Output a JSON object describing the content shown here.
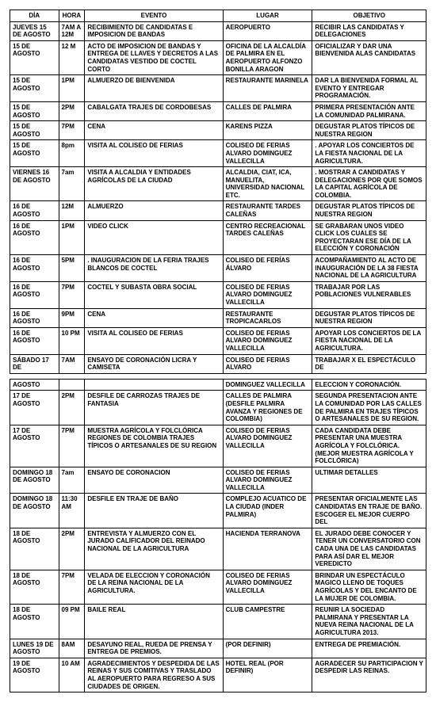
{
  "headers": {
    "dia": "DÍA",
    "hora": "HORA",
    "evento": "EVENTO",
    "lugar": "LUGAR",
    "objetivo": "OBJETIVO"
  },
  "rows1": [
    {
      "dia": "JUEVES 15 DE AGOSTO",
      "hora": "7AM A 12M",
      "evento": "RECIBIMIENTO DE CANDIDATAS E IMPOSICION DE BANDAS",
      "lugar": "AEROPUERTO",
      "objetivo": "RECIBIR LAS CANDIDATAS Y DELEGACIONES"
    },
    {
      "dia": "15 DE AGOSTO",
      "hora": "12 M",
      "evento": "ACTO DE IMPOSICION DE BANDAS Y ENTREGA DE LLAVES Y DECRETOS A LAS CANDIDATAS VESTIDO DE COCTEL CORTO",
      "lugar": "OFICINA DE LA ALCALDÍA DE PALMIRA EN EL AEROPUERTO ALFONZO BONILLA ARAGON",
      "objetivo": "OFICIALIZAR Y DAR UNA BIENVENIDA ALAS CANDIDATAS"
    },
    {
      "dia": "15 DE AGOSTO",
      "hora": "1PM",
      "evento": "ALMUERZO DE BIENVENIDA",
      "lugar": "RESTAURANTE MARINELA",
      "objetivo": "DAR LA BIENVENIDA FORMAL AL EVENTO Y ENTREGAR PROGRAMACIÓN."
    },
    {
      "dia": "15 DE AGOSTO",
      "hora": "2PM",
      "evento": "CABALGATA TRAJES DE CORDOBESAS",
      "lugar": "CALLES DE PALMIRA",
      "objetivo": "PRIMERA PRESENTACIÓN ANTE LA COMUNIDAD PALMIRANA."
    },
    {
      "dia": "15 DE AGOSTO",
      "hora": "7PM",
      "evento": "CENA",
      "lugar": "KARENS PIZZA",
      "objetivo": "DEGUSTAR PLATOS TÍPICOS DE NUESTRA REGION"
    },
    {
      "dia": "15 DE AGOSTO",
      "hora": "8pm",
      "evento": "VISITA AL COLISEO DE FERIAS",
      "lugar": "COLISEO DE FERIAS ALVARO DOMINGUEZ VALLECILLA",
      "objetivo": ". APOYAR LOS CONCIERTOS DE LA FIESTA NACIONAL DE LA AGRICULTURA."
    },
    {
      "dia": "VIERNES 16 DE AGOSTO",
      "hora": "7am",
      "evento": "VISITA A ALCALDIA Y ENTIDADES AGRÍCOLAS DE LA CIUDAD",
      "lugar": "ALCALDIA, CIAT, ICA, MANUELITA, UNIVERSIDAD NACIONAL ETC.",
      "objetivo": ". MOSTRAR A CANDIDATAS Y DELEGACIONES POR QUE SOMOS LA CAPITAL AGRÍCOLA DE COLOMBIA."
    },
    {
      "dia": "16 DE AGOSTO",
      "hora": "12M",
      "evento": "ALMUERZO",
      "lugar": "RESTAURANTE TARDES CALEÑAS",
      "objetivo": "DEGUSTAR PLATOS TÍPICOS DE NUESTRA REGION"
    },
    {
      "dia": "16 DE AGOSTO",
      "hora": "1PM",
      "evento": "VIDEO CLICK",
      "lugar": "CENTRO RECREACIONAL TARDES CALEÑAS",
      "objetivo": "SE GRABARAN UNOS VIDEO CLICK LOS CUALES SE PROYECTARAN ESE DÍA DE LA ELECCIÓN Y CORONACIÓN"
    },
    {
      "dia": "16 DE AGOSTO",
      "hora": "5PM",
      "evento": ". INAUGURACION DE LA FERIA TRAJES BLANCOS DE COCTEL",
      "lugar": "COLISEO DE FERÍAS ÁLVARO",
      "objetivo": "ACOMPAÑAMIENTO AL ACTO DE INAUGURACIÓN DE LA 38 FIESTA NACIONAL DE LA AGRICULTURA"
    },
    {
      "dia": "16 DE AGOSTO",
      "hora": "7PM",
      "evento": "COCTEL Y SUBASTA OBRA SOCIAL",
      "lugar": "COLISEO DE FERIAS ALVARO DOMINGUEZ VALLECILLA",
      "objetivo": "TRABAJAR POR LAS POBLACIONES VULNERABLES"
    },
    {
      "dia": "16 DE AGOSTO",
      "hora": "9PM",
      "evento": "CENA",
      "lugar": "RESTAURANTE TROPICACARLOS",
      "objetivo": "DEGUSTAR PLATOS TÍPICOS DE NUESTRA REGION"
    },
    {
      "dia": "16 DE AGOSTO",
      "hora": "10 PM",
      "evento": "VISITA AL COLISEO DE FERIAS",
      "lugar": "COLISEO DE FERIAS ALVARO DOMINGUEZ VALLECILLA",
      "objetivo": "APOYAR LOS CONCIERTOS DE LA FIESTA NACIONAL DE LA AGRICULTURA."
    },
    {
      "dia": "SÁBADO 17 DE",
      "hora": "7AM",
      "evento": "ENSAYO DE CORONACIÓN LICRA Y CAMISETA",
      "lugar": "COLISEO DE FERIAS ALVARO",
      "objetivo": "TRABAJAR X EL ESPECTÁCULO DE"
    }
  ],
  "rows2": [
    {
      "dia": "AGOSTO",
      "hora": "",
      "evento": "",
      "lugar": "DOMINGUEZ VALLECILLA",
      "objetivo": "ELECCION Y CORONACIÓN."
    },
    {
      "dia": "17 DE AGOSTO",
      "hora": "2PM",
      "evento": "DESFILE DE CARROZAS TRAJES  DE FANTASIA",
      "lugar": "CALLES DE PALMIRA (DESFILE PALMIRA AVANZA Y REGIONES DE COLOMBIA)",
      "objetivo": "SEGUNDA PRESENTACION ANTE LA COMUNIDAD POR LAS CALLES DE PALMIRA EN TRAJES TÍPICOS O ARTESANALES DE SU REGION."
    },
    {
      "dia": "17 DE AGOSTO",
      "hora": "7PM",
      "evento": "MUESTRA AGRÍCOLA Y FOLCLÓRICA REGIONES DE COLOMBIA TRAJES TÍPICOS O ARTESANALES DE SU REGION",
      "lugar": "COLISEO DE FERIAS ALVARO DOMINGUEZ VALLECILLA",
      "objetivo": "CADA CANDIDATA DEBE PRESENTAR UNA MUESTRA AGRÍCOLA Y FOLCLÓRICA. (MEJOR MUESTRA AGRÍCOLA Y FOLCLÓRICA)"
    },
    {
      "dia": "DOMINGO 18 DE AGOSTO",
      "hora": "7am",
      "evento": "ENSAYO DE CORONACION",
      "lugar": "COLISEO DE FERIAS ALVARO DOMINGUEZ VALLECILLA",
      "objetivo": "ULTIMAR DETALLES"
    },
    {
      "dia": "DOMINGO 18 DE AGOSTO",
      "hora": "11:30 AM",
      "evento": "DESFILE EN TRAJE DE BAÑO",
      "lugar": "COMPLEJO ACUATICO DE LA CIUDAD (INDER PALMIRA)",
      "objetivo": "PRESENTAR OFICIALMENTE LAS CANDIDATAS EN TRAJE DE BAÑO. ESCOGER EL MEJOR CUERPO DEL"
    },
    {
      "dia": "18 DE AGOSTO",
      "hora": "2PM",
      "evento": "ENTREVISTA Y ALMUERZO CON EL JURADO CALIFICADOR DEL REINADO NACIONAL DE LA AGRICULTURA",
      "lugar": "HACIENDA TERRANOVA",
      "objetivo": "EL JURADO DEBE CONOCER Y TENER UN CONVERSATORIO CON CADA UNA DE LAS CANDIDATAS PARA ASÍ DAR EL MEJOR VEREDICTO"
    },
    {
      "dia": "18 DE AGOSTO",
      "hora": "7PM",
      "evento": "VELADA DE ELECCION Y CORONACIÓN DE LA REINA NACIONAL DE LA AGRICULTURA.",
      "lugar": "COLISEO DE FERIAS ALVARO DOMINGUEZ VALLECILLA",
      "objetivo": "BRINDAR UN ESPECTÁCULO MAGICO LLENO DE TOQUES AGRÍCOLAS Y DEL ENCANTO DE LA MUJER DE COLOMBIA."
    },
    {
      "dia": "18 DE AGOSTO",
      "hora": "09 PM",
      "evento": "BAILE REAL",
      "lugar": "CLUB CAMPESTRE",
      "objetivo": "REUNIR LA SOCIEDAD PALMIRANA Y PRESENTAR LA NUEVA REINA NACIONAL DE LA AGRICULTURA 2013."
    },
    {
      "dia": "LUNES 19 DE AGOSTO",
      "hora": "8AM",
      "evento": "DESAYUNO REAL, RUEDA DE PRENSA Y ENTREGA DE PREMIOS.",
      "lugar": "(POR DEFINIR)",
      "objetivo": "ENTREGA DE PREMIACIÓN."
    },
    {
      "dia": "19 DE AGOSTO",
      "hora": "10 AM",
      "evento": "AGRADECIMIENTOS Y DESPEDIDA DE LAS REINAS Y SUS COMITIVAS Y TRASLADO AL AEROPUERTO PARA REGRESO A SUS CIUDADES DE ORIGEN.",
      "lugar": "HOTEL REAL (POR DEFINIR)",
      "objetivo": "AGRADECER SU PARTICIPACION Y DESPEDIR LAS REINAS."
    }
  ]
}
